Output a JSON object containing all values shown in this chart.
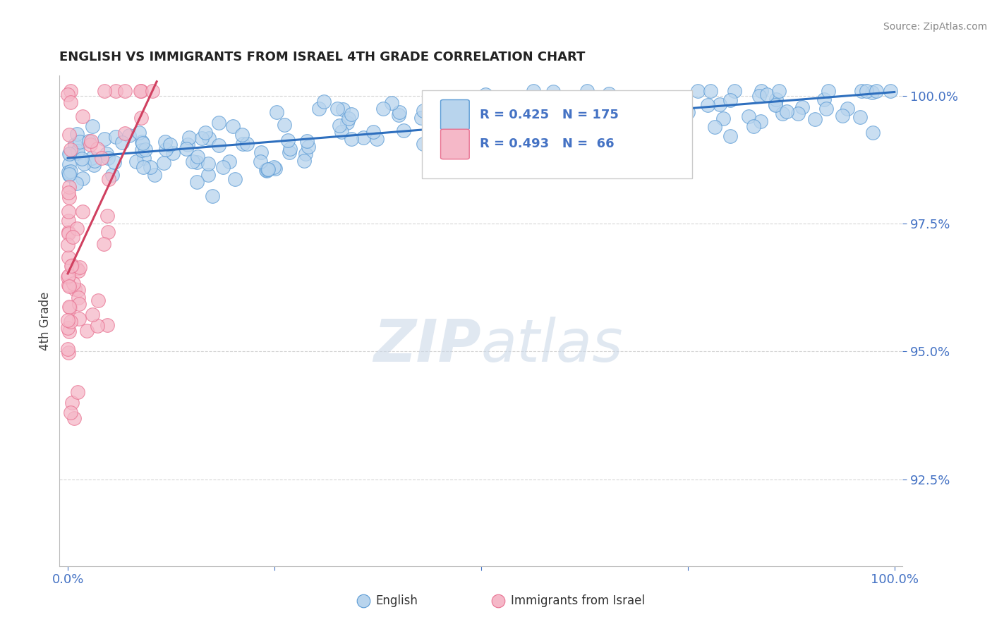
{
  "title": "ENGLISH VS IMMIGRANTS FROM ISRAEL 4TH GRADE CORRELATION CHART",
  "source_text": "Source: ZipAtlas.com",
  "ylabel": "4th Grade",
  "x_min": 0.0,
  "x_max": 1.0,
  "y_min": 0.908,
  "y_max": 1.004,
  "y_ticks": [
    0.925,
    0.95,
    0.975,
    1.0
  ],
  "y_tick_labels": [
    "92.5%",
    "95.0%",
    "97.5%",
    "100.0%"
  ],
  "english_R": 0.425,
  "english_N": 175,
  "israel_R": 0.493,
  "israel_N": 66,
  "english_color": "#b8d4ed",
  "english_edge_color": "#5b9bd5",
  "english_line_color": "#2e6fbe",
  "israel_color": "#f5b8c8",
  "israel_edge_color": "#e87090",
  "israel_line_color": "#d04060",
  "background_color": "#ffffff",
  "grid_color": "#cccccc",
  "axis_color": "#4472c4",
  "title_color": "#222222",
  "source_color": "#888888",
  "watermark_color": "#ccd9e8",
  "legend_text_color": "#4472c4"
}
